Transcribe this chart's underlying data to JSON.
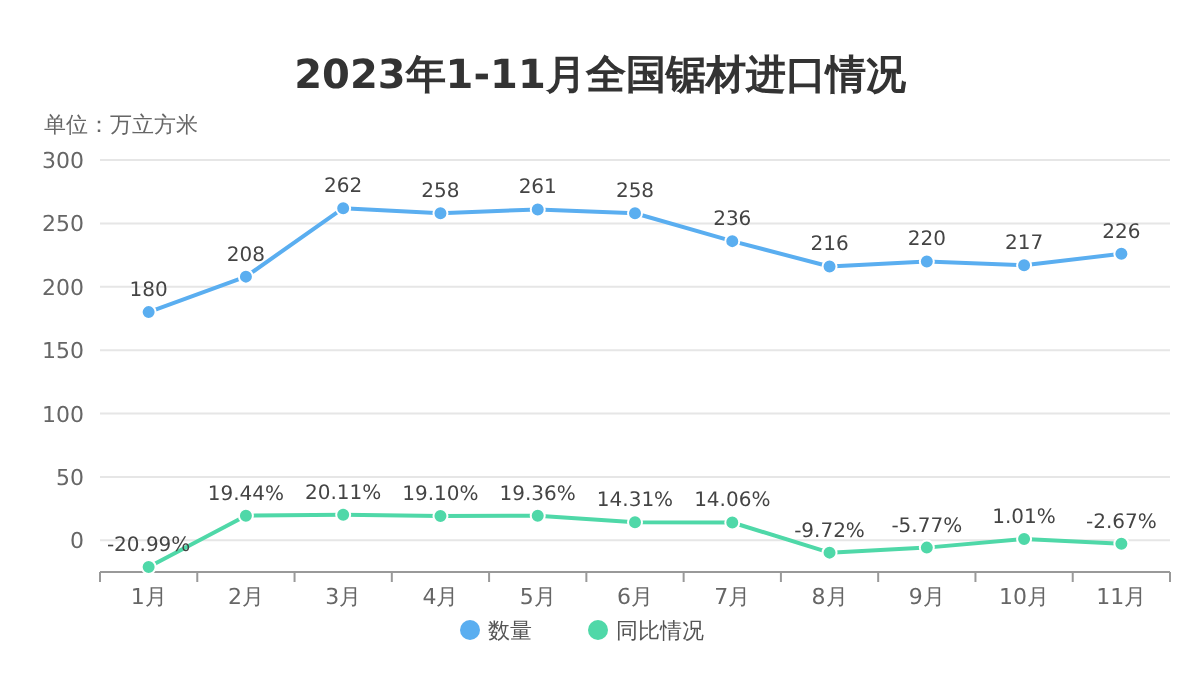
{
  "chart_data": {
    "type": "line",
    "title": "2023年1-11月全国锯材进口情况",
    "ylabel": "单位：万立方米",
    "categories": [
      "1月",
      "2月",
      "3月",
      "4月",
      "5月",
      "6月",
      "7月",
      "8月",
      "9月",
      "10月",
      "11月"
    ],
    "series": [
      {
        "name": "数量",
        "color": "#5aaef0",
        "values": [
          180,
          208,
          262,
          258,
          261,
          258,
          236,
          216,
          220,
          217,
          226
        ],
        "value_labels": [
          "180",
          "208",
          "262",
          "258",
          "261",
          "258",
          "236",
          "216",
          "220",
          "217",
          "226"
        ]
      },
      {
        "name": "同比情况",
        "color": "#4fd8a8",
        "values": [
          -20.99,
          19.44,
          20.11,
          19.1,
          19.36,
          14.31,
          14.06,
          -9.72,
          -5.77,
          1.01,
          -2.67
        ],
        "value_labels": [
          "-20.99%",
          "19.44%",
          "20.11%",
          "19.10%",
          "19.36%",
          "14.31%",
          "14.06%",
          "-9.72%",
          "-5.77%",
          "1.01%",
          "-2.67%"
        ]
      }
    ],
    "ylim": [
      -25,
      300
    ],
    "yticks": [
      0,
      50,
      100,
      150,
      200,
      250,
      300
    ],
    "grid": "y",
    "legend": "bottom",
    "marker": "circle",
    "line_style": "solid"
  }
}
